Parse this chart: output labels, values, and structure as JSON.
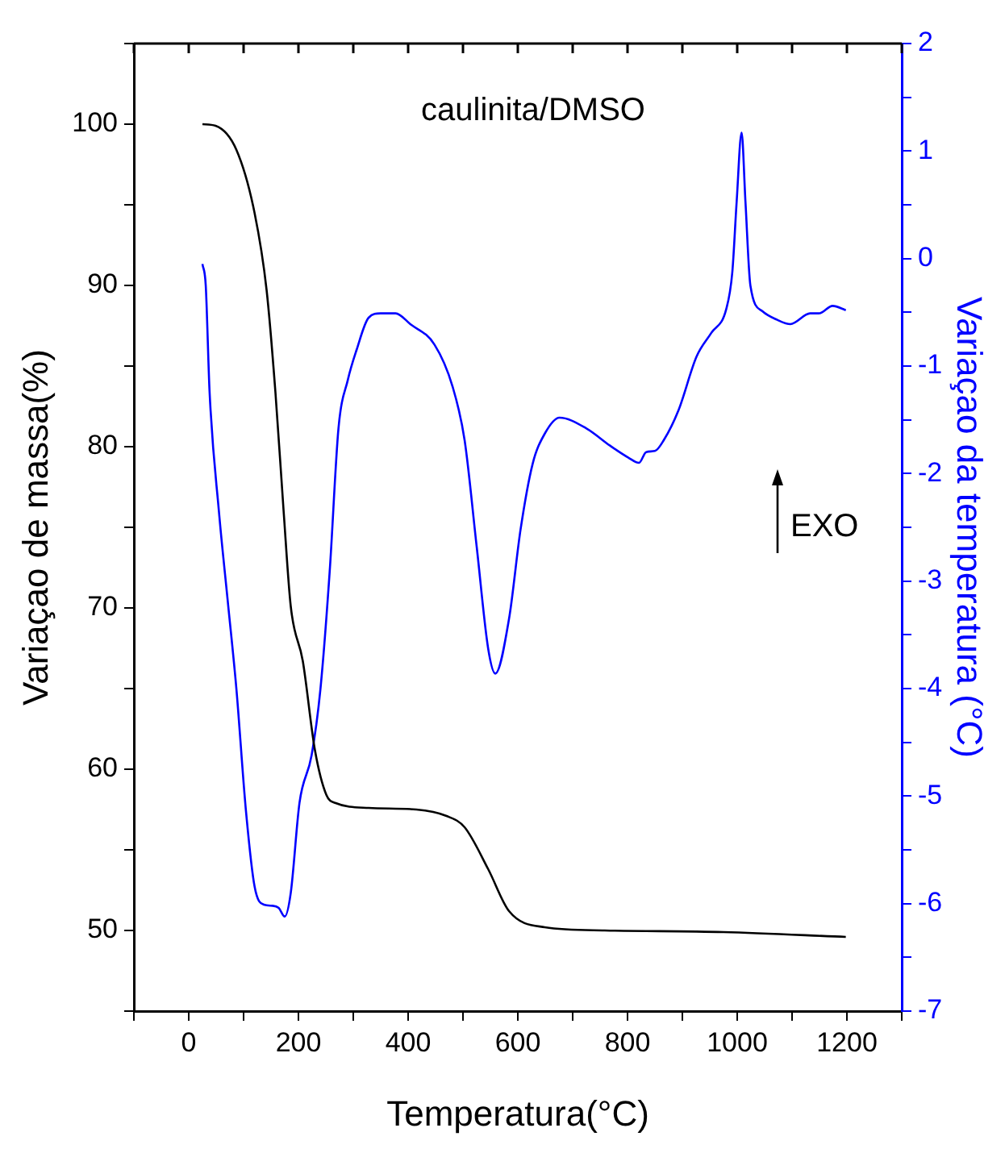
{
  "chart_data": {
    "type": "line",
    "title": "caulinita/DMSO",
    "xlabel": "Temperatura(°C)",
    "ylabel": "Variaçao de massa(%)",
    "y2label": "Variaçao da temperatura (°C)",
    "annotations": [
      "EXO"
    ],
    "xlim": [
      -100,
      1300
    ],
    "xticks": [
      {
        "value": -100,
        "label": null
      },
      0,
      {
        "value": 100,
        "label": null
      },
      200,
      {
        "value": 300,
        "label": null
      },
      400,
      {
        "value": 500,
        "label": null
      },
      600,
      {
        "value": 700,
        "label": null
      },
      800,
      {
        "value": 900,
        "label": null
      },
      1000,
      {
        "value": 1100,
        "label": null
      },
      1200,
      {
        "value": 1300,
        "label": null
      }
    ],
    "ylim": [
      45,
      105
    ],
    "yticks": [
      {
        "value": 45,
        "label": null
      },
      50,
      {
        "value": 55,
        "label": null
      },
      60,
      {
        "value": 65,
        "label": null
      },
      70,
      {
        "value": 75,
        "label": null
      },
      80,
      {
        "value": 85,
        "label": null
      },
      90,
      {
        "value": 95,
        "label": null
      },
      100,
      {
        "value": 105,
        "label": null
      }
    ],
    "y2lim": [
      -7,
      2
    ],
    "y2ticks": [
      -7,
      {
        "value": -6.5,
        "label": null
      },
      -6,
      {
        "value": -5.5,
        "label": null
      },
      -5,
      {
        "value": -4.5,
        "label": null
      },
      -4,
      {
        "value": -3.5,
        "label": null
      },
      -3,
      {
        "value": -2.5,
        "label": null
      },
      -2,
      {
        "value": -1.5,
        "label": null
      },
      -1,
      {
        "value": -0.5,
        "label": null
      },
      0,
      {
        "value": 0.5,
        "label": null
      },
      1,
      {
        "value": 1.5,
        "label": null
      },
      2
    ],
    "series": [
      {
        "color": "#000000",
        "x": [
          25,
          49,
          87,
          120,
          142,
          158,
          173,
          186,
          208,
          230,
          251,
          268,
          328,
          415,
          470,
          503,
          546,
          584,
          649,
          758,
          975,
          1198
        ],
        "values": [
          100,
          99.9,
          98.4,
          94.5,
          89.7,
          83.4,
          76,
          70.1,
          66.7,
          61.2,
          58.4,
          57.9,
          57.6,
          57.5,
          57.1,
          56.4,
          53.8,
          51.2,
          50.2,
          50,
          49.9,
          49.6
        ]
      },
      {
        "color": "#0000ff",
        "axis": "y2",
        "x": [
          25,
          31,
          38,
          55,
          71,
          87,
          104,
          120,
          137,
          153,
          164,
          175,
          186,
          202,
          224,
          240,
          257,
          273,
          290,
          306,
          328,
          350,
          377,
          404,
          448,
          481,
          503,
          525,
          546,
          559,
          584,
          605,
          627,
          649,
          676,
          725,
          768,
          801,
          821,
          834,
          850,
          866,
          893,
          926,
          953,
          980,
          991,
          999,
          1008,
          1015,
          1024,
          1046,
          1073,
          1097,
          1133,
          1149,
          1174,
          1198
        ],
        "values": [
          -0.05,
          -0.25,
          -1.24,
          -2.35,
          -3.18,
          -4.01,
          -5.12,
          -5.84,
          -6.01,
          -6.02,
          -6.04,
          -6.12,
          -5.9,
          -5.06,
          -4.62,
          -4.01,
          -2.91,
          -1.58,
          -1.13,
          -0.85,
          -0.55,
          -0.51,
          -0.51,
          -0.61,
          -0.8,
          -1.19,
          -1.69,
          -2.68,
          -3.63,
          -3.86,
          -3.35,
          -2.52,
          -1.91,
          -1.63,
          -1.48,
          -1.58,
          -1.74,
          -1.85,
          -1.9,
          -1.8,
          -1.79,
          -1.69,
          -1.41,
          -0.91,
          -0.69,
          -0.47,
          -0.13,
          0.53,
          1.17,
          0.53,
          -0.25,
          -0.49,
          -0.57,
          -0.61,
          -0.51,
          -0.51,
          -0.44,
          -0.48
        ]
      }
    ]
  }
}
